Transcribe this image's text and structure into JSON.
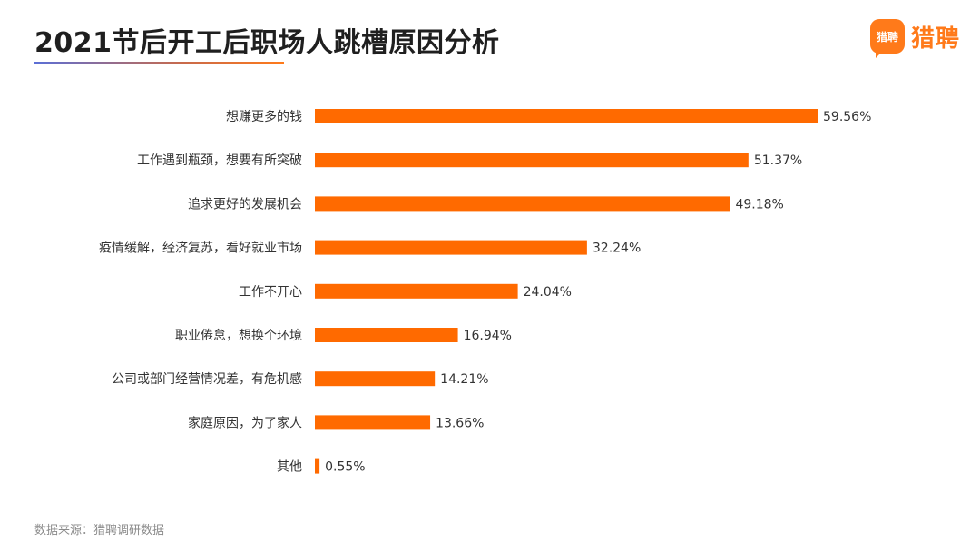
{
  "header": {
    "title": "2021节后开工后职场人跳槽原因分析"
  },
  "logo": {
    "badge_text": "猎聘",
    "text": "猎聘",
    "icon": "liepin-logo-icon"
  },
  "colors": {
    "bar": "#ff6a00",
    "accent": "#ff7a1a",
    "title": "#1f1f1f"
  },
  "chart_data": {
    "type": "bar",
    "orientation": "horizontal",
    "title": "2021节后开工后职场人跳槽原因分析",
    "categories": [
      "想赚更多的钱",
      "工作遇到瓶颈，想要有所突破",
      "追求更好的发展机会",
      "疫情缓解，经济复苏，看好就业市场",
      "工作不开心",
      "职业倦怠，想换个环境",
      "公司或部门经营情况差，有危机感",
      "家庭原因，为了家人",
      "其他"
    ],
    "values": [
      59.56,
      51.37,
      49.18,
      32.24,
      24.04,
      16.94,
      14.21,
      13.66,
      0.55
    ],
    "value_labels": [
      "59.56%",
      "51.37%",
      "49.18%",
      "32.24%",
      "24.04%",
      "16.94%",
      "14.21%",
      "13.66%",
      "0.55%"
    ],
    "unit": "%",
    "xlim": [
      0,
      60
    ],
    "grid": false,
    "legend": "none"
  },
  "footer": {
    "source": "数据来源：猎聘调研数据"
  }
}
